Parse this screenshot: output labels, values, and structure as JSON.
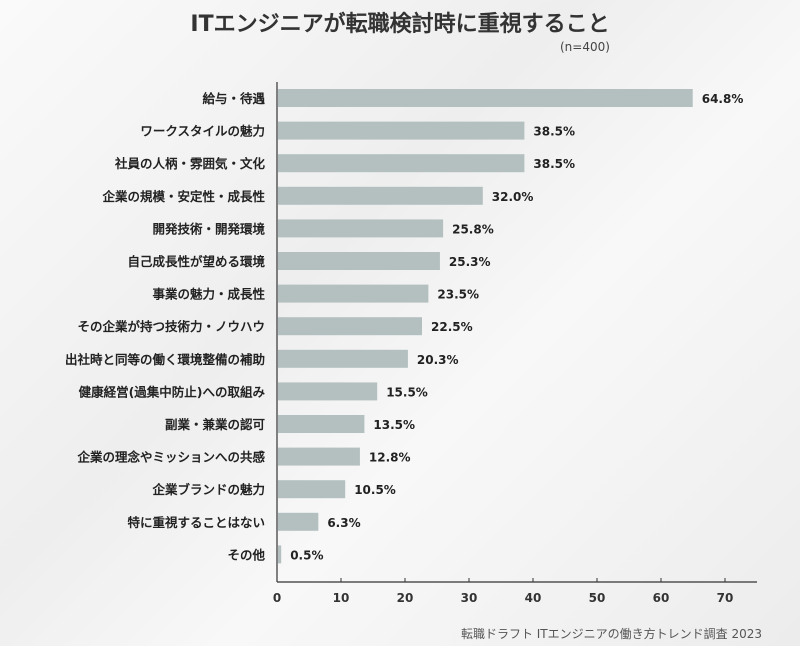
{
  "chart_data": {
    "type": "bar",
    "orientation": "horizontal",
    "title": "ITエンジニアが転職検討時に重視すること",
    "subtitle": "(n=400)",
    "source": "転職ドラフト ITエンジニアの働き方トレンド調査 2023",
    "categories": [
      "給与・待遇",
      "ワークスタイルの魅力",
      "社員の人柄・雰囲気・文化",
      "企業の規模・安定性・成長性",
      "開発技術・開発環境",
      "自己成長性が望める環境",
      "事業の魅力・成長性",
      "その企業が持つ技術力・ノウハウ",
      "出社時と同等の働く環境整備の補助",
      "健康経営(過集中防止)への取組み",
      "副業・兼業の認可",
      "企業の理念やミッションへの共感",
      "企業ブランドの魅力",
      "特に重視することはない",
      "その他"
    ],
    "values": [
      64.8,
      38.5,
      38.5,
      32.0,
      25.8,
      25.3,
      23.5,
      22.5,
      20.3,
      15.5,
      13.5,
      12.8,
      10.5,
      6.3,
      0.5
    ],
    "data_labels": [
      "64.8%",
      "38.5%",
      "38.5%",
      "32.0%",
      "25.8%",
      "25.3%",
      "23.5%",
      "22.5%",
      "20.3%",
      "15.5%",
      "13.5%",
      "12.8%",
      "10.5%",
      "6.3%",
      "0.5%"
    ],
    "xticks": [
      "0",
      "10",
      "20",
      "30",
      "40",
      "50",
      "60",
      "70"
    ],
    "xlim": [
      0,
      75
    ],
    "grid": false,
    "bar_color": "#b4c0c0"
  }
}
